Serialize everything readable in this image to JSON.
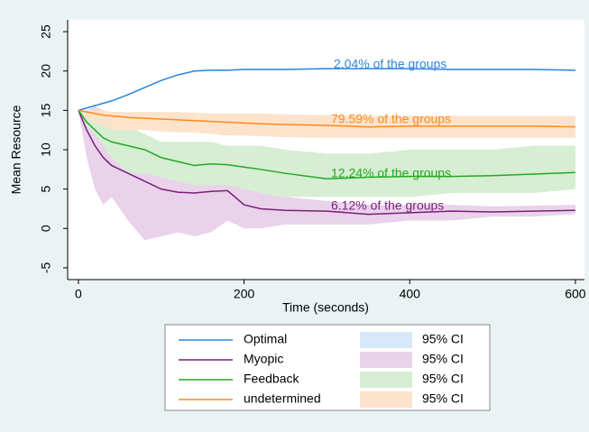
{
  "chart_data": {
    "type": "line",
    "x_label": "Time (seconds)",
    "y_label": "Mean Resource",
    "x": [
      0,
      10,
      20,
      30,
      40,
      60,
      80,
      100,
      120,
      140,
      160,
      180,
      200,
      220,
      250,
      300,
      350,
      400,
      450,
      500,
      550,
      600
    ],
    "xlim": [
      -13,
      611
    ],
    "xticks": [
      0,
      200,
      400,
      600
    ],
    "ylim": [
      -6.5,
      26.5
    ],
    "yticks": [
      -5,
      0,
      5,
      10,
      15,
      20,
      25
    ],
    "ci_label": "95% CI",
    "series": [
      {
        "name": "Optimal",
        "color": "#2f86dd",
        "ci_color": "#d6e8fa",
        "values": [
          15,
          15.3,
          15.6,
          15.9,
          16.2,
          17.0,
          17.9,
          18.8,
          19.5,
          20.0,
          20.1,
          20.1,
          20.2,
          20.2,
          20.2,
          20.3,
          20.3,
          20.3,
          20.2,
          20.2,
          20.2,
          20.1
        ],
        "ci_lower": [
          14.9,
          15.2,
          15.5,
          15.8,
          16.1,
          16.9,
          17.8,
          18.7,
          19.4,
          19.9,
          20.0,
          20.0,
          20.1,
          20.1,
          20.1,
          20.2,
          20.2,
          20.2,
          20.1,
          20.1,
          20.1,
          20.0
        ],
        "ci_upper": [
          15.1,
          15.4,
          15.7,
          16.0,
          16.3,
          17.1,
          18.0,
          18.9,
          19.6,
          20.1,
          20.2,
          20.2,
          20.3,
          20.3,
          20.3,
          20.4,
          20.4,
          20.4,
          20.3,
          20.3,
          20.3,
          20.2
        ],
        "annotation": "2.04% of the groups"
      },
      {
        "name": "Myopic",
        "color": "#7a1f7b",
        "ci_color": "#e9d2ea",
        "values": [
          15,
          12.5,
          10.5,
          9,
          8,
          7,
          6,
          5,
          4.6,
          4.5,
          4.7,
          4.8,
          3,
          2.5,
          2.3,
          2.2,
          1.8,
          2,
          2.2,
          2.1,
          2.2,
          2.3
        ],
        "ci_lower": [
          15,
          9,
          5,
          3,
          4,
          1,
          -1.5,
          -1,
          -0.5,
          -1,
          -0.5,
          1,
          0,
          0,
          0.5,
          0.5,
          0.5,
          1,
          1,
          1.5,
          1.5,
          1.8
        ],
        "ci_upper": [
          15,
          15,
          15.5,
          15,
          14,
          13,
          11,
          9,
          9,
          9,
          9,
          9,
          6,
          4.5,
          4,
          3.5,
          3,
          3,
          3,
          2.8,
          2.9,
          3
        ],
        "annotation": "6.12% of the groups"
      },
      {
        "name": "Feedback",
        "color": "#25a825",
        "ci_color": "#d6eed2",
        "values": [
          15,
          13.5,
          12.5,
          11.5,
          11,
          10.5,
          10,
          9,
          8.5,
          8,
          8.2,
          8.1,
          7.8,
          7.5,
          7,
          6.3,
          6.5,
          6.6,
          6.6,
          6.7,
          6.9,
          7.1
        ],
        "ci_lower": [
          15,
          13,
          12,
          10.5,
          9,
          7,
          7,
          6.5,
          6,
          5.5,
          5.5,
          5.5,
          5,
          4.5,
          4,
          4,
          4,
          4,
          4.5,
          4.5,
          4.5,
          5
        ],
        "ci_upper": [
          15,
          14.5,
          14,
          13,
          13,
          13,
          12,
          11,
          11,
          11,
          11,
          10.5,
          10.5,
          10.5,
          10,
          9.5,
          9.5,
          10,
          10,
          10,
          10.5,
          10.5
        ],
        "annotation": "12.24% of the groups"
      },
      {
        "name": "undetermined",
        "color": "#ff8a1c",
        "ci_color": "#fde3cc",
        "values": [
          15,
          14.8,
          14.6,
          14.4,
          14.3,
          14.1,
          14,
          13.9,
          13.8,
          13.7,
          13.6,
          13.5,
          13.4,
          13.3,
          13.2,
          13.1,
          12.9,
          13,
          13,
          13,
          13,
          12.9
        ],
        "ci_lower": [
          14.9,
          14,
          13.5,
          13,
          12.5,
          12.5,
          12.5,
          12.3,
          12.2,
          12.2,
          12,
          11.8,
          11.8,
          11.7,
          11.6,
          11.5,
          11.5,
          11.5,
          11.5,
          11.5,
          11.5,
          11.5
        ],
        "ci_upper": [
          15,
          15,
          15,
          15,
          14.8,
          14.8,
          14.8,
          14.8,
          14.8,
          14.7,
          14.6,
          14.6,
          14.6,
          14.6,
          14.5,
          14.4,
          14.3,
          14.3,
          14.3,
          14.3,
          14.3,
          14.3
        ],
        "annotation": "79.59% of the groups"
      }
    ]
  }
}
